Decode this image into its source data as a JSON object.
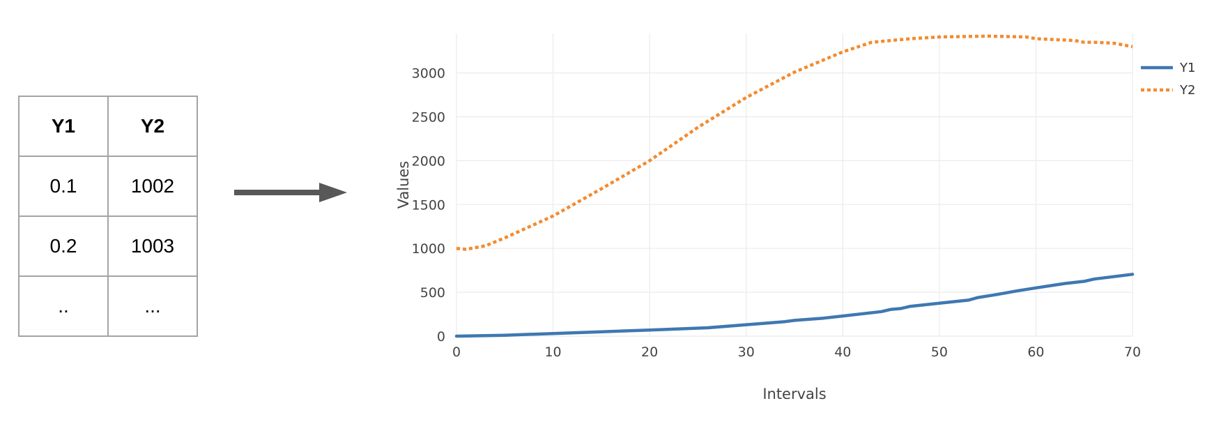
{
  "table": {
    "headers": [
      "Y1",
      "Y2"
    ],
    "rows": [
      [
        "0.1",
        "1002"
      ],
      [
        "0.2",
        "1003"
      ],
      [
        "..",
        "..."
      ]
    ]
  },
  "colors": {
    "y1": "#3f78b2",
    "y2": "#f28b30",
    "grid": "#ebebeb",
    "arrow": "#585858"
  },
  "chart_data": {
    "type": "line",
    "xlabel": "Intervals",
    "ylabel": "Values",
    "xlim": [
      0,
      70
    ],
    "ylim": [
      0,
      3450
    ],
    "xticks": [
      0,
      10,
      20,
      30,
      40,
      50,
      60,
      70
    ],
    "yticks": [
      0,
      500,
      1000,
      1500,
      2000,
      2500,
      3000
    ],
    "grid": true,
    "legend_position": "top-right",
    "series": [
      {
        "name": "Y1",
        "style": "solid",
        "x": [
          0,
          5,
          10,
          15,
          20,
          26,
          30,
          34,
          35,
          38,
          40,
          44,
          45,
          46,
          47,
          50,
          53,
          54,
          56,
          58,
          60,
          63,
          65,
          66,
          70
        ],
        "y": [
          0,
          10,
          30,
          50,
          70,
          95,
          130,
          165,
          180,
          205,
          230,
          280,
          305,
          315,
          340,
          375,
          410,
          440,
          475,
          515,
          550,
          600,
          625,
          650,
          705
        ]
      },
      {
        "name": "Y2",
        "style": "dotted",
        "x": [
          0,
          1,
          3,
          5,
          10,
          15,
          20,
          25,
          30,
          35,
          40,
          43,
          45,
          47,
          50,
          55,
          59,
          60,
          64,
          65,
          66,
          68,
          70
        ],
        "y": [
          1000,
          990,
          1030,
          1120,
          1370,
          1680,
          2000,
          2380,
          2720,
          3010,
          3240,
          3350,
          3370,
          3390,
          3410,
          3420,
          3410,
          3390,
          3370,
          3350,
          3350,
          3340,
          3300
        ]
      }
    ]
  }
}
